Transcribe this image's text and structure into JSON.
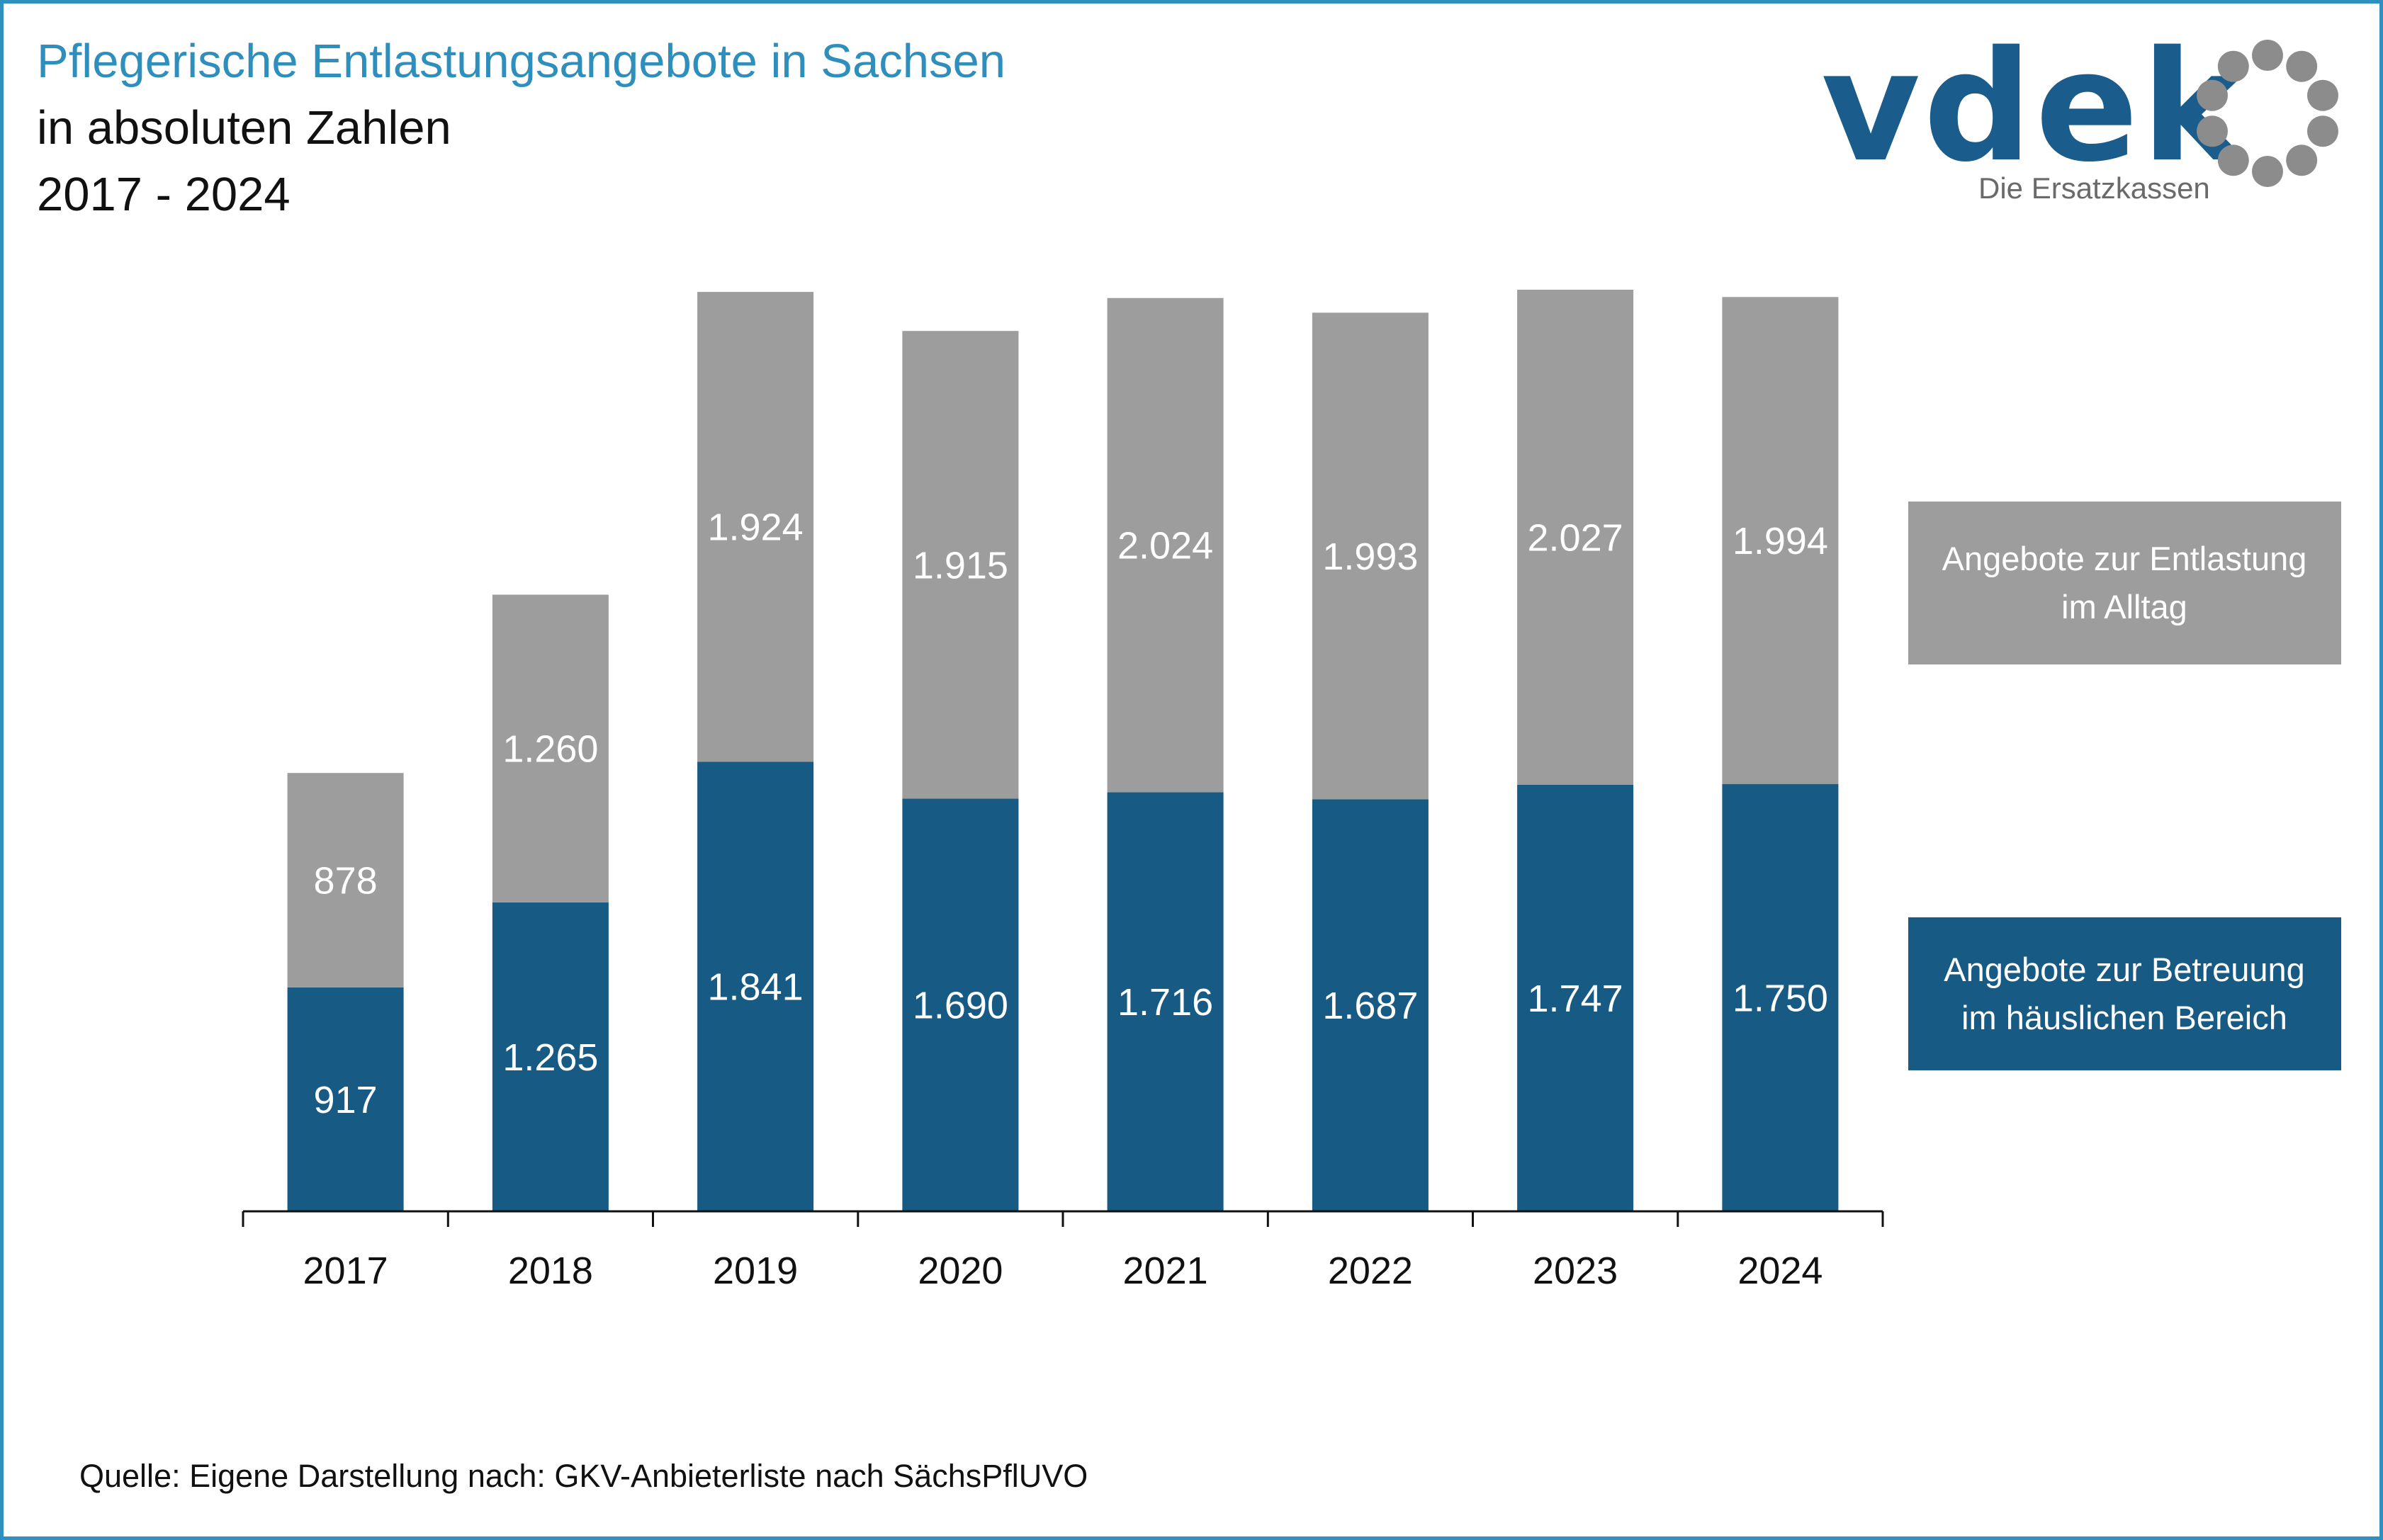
{
  "header": {
    "title": "Pflegerische Entlastungsangebote in Sachsen",
    "subtitle": "in absoluten Zahlen",
    "period": "2017 - 2024"
  },
  "logo": {
    "wordmark": "vdek",
    "tagline": "Die Ersatzkassen",
    "icon": "circle-of-dots-icon"
  },
  "colors": {
    "title": "#2e8fbd",
    "frame": "#2f8fbf",
    "series_alltag": "#9d9d9d",
    "series_betreuung": "#175a84",
    "logo_text": "#1a5c8c",
    "logo_dots": "#8c8c8c"
  },
  "chart_data": {
    "type": "bar",
    "stacked": true,
    "categories": [
      "2017",
      "2018",
      "2019",
      "2020",
      "2021",
      "2022",
      "2023",
      "2024"
    ],
    "series": [
      {
        "name": "Angebote zur Betreuung im häuslichen Bereich",
        "values": [
          917,
          1265,
          1841,
          1690,
          1716,
          1687,
          1747,
          1750
        ],
        "labels": [
          "917",
          "1.265",
          "1.841",
          "1.690",
          "1.716",
          "1.687",
          "1.747",
          "1.750"
        ],
        "color": "#175a84"
      },
      {
        "name": "Angebote zur Entlastung im Alltag",
        "values": [
          878,
          1260,
          1924,
          1915,
          2024,
          1993,
          2027,
          1994
        ],
        "labels": [
          "878",
          "1.260",
          "1.924",
          "1.915",
          "2.024",
          "1.993",
          "2.027",
          "1.994"
        ],
        "color": "#9d9d9d"
      }
    ],
    "legend": [
      {
        "lines": [
          "Angebote zur Entlastung",
          "im Alltag"
        ],
        "series_index": 1
      },
      {
        "lines": [
          "Angebote zur Betreuung",
          "im häuslichen Bereich"
        ],
        "series_index": 0
      }
    ],
    "legend_position": "right",
    "ylim": [
      0,
      3800
    ],
    "y_axis_visible": false,
    "grid": false,
    "data_labels": "inside-center"
  },
  "footer": {
    "source": "Quelle: Eigene Darstellung nach: GKV-Anbieterliste nach SächsPflUVO"
  }
}
